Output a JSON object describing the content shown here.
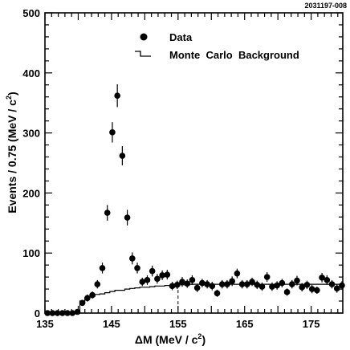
{
  "figure_id": "2031197-008",
  "chart_data": {
    "type": "scatter",
    "xlabel": "ΔM (MeV / c²)",
    "ylabel": "Events / 0.75 (MeV / c²)",
    "xlim": [
      135,
      179.75
    ],
    "ylim": [
      0,
      500
    ],
    "xticks": [
      135,
      145,
      155,
      165,
      175
    ],
    "yticks": [
      0,
      100,
      200,
      300,
      400,
      500
    ],
    "legend_position": "top-center",
    "series": [
      {
        "name": "Data",
        "kind": "points_with_errors",
        "x": [
          135.375,
          136.125,
          136.875,
          137.625,
          138.375,
          139.125,
          139.875,
          140.625,
          141.375,
          142.125,
          142.875,
          143.625,
          144.375,
          145.125,
          145.875,
          146.625,
          147.375,
          148.125,
          148.875,
          149.625,
          150.375,
          151.125,
          151.875,
          152.625,
          153.375,
          154.125,
          154.875,
          155.625,
          156.375,
          157.125,
          157.875,
          158.625,
          159.375,
          160.125,
          160.875,
          161.625,
          162.375,
          163.125,
          163.875,
          164.625,
          165.375,
          166.125,
          166.875,
          167.625,
          168.375,
          169.125,
          169.875,
          170.625,
          171.375,
          172.125,
          172.875,
          173.625,
          174.375,
          175.125,
          175.875,
          176.625,
          177.375,
          178.125,
          178.875,
          179.625
        ],
        "y": [
          0,
          0,
          0,
          0,
          0,
          0,
          2,
          17,
          25,
          30,
          48,
          75,
          167,
          301,
          362,
          262,
          159,
          91,
          75,
          52,
          55,
          70,
          57,
          63,
          64,
          45,
          47,
          52,
          49,
          55,
          42,
          50,
          48,
          45,
          33,
          48,
          48,
          53,
          66,
          48,
          48,
          52,
          47,
          44,
          60,
          44,
          46,
          50,
          35,
          48,
          54,
          43,
          47,
          40,
          38,
          59,
          55,
          48,
          41,
          46
        ],
        "err": [
          0,
          0,
          0,
          0,
          0,
          0,
          1.5,
          5,
          6,
          6,
          7,
          9,
          13,
          17,
          19,
          16,
          13,
          10,
          9,
          7,
          8,
          9,
          8,
          8,
          8,
          7,
          7,
          8,
          7,
          8,
          7,
          7,
          7,
          7,
          6,
          7,
          7,
          8,
          8,
          7,
          7,
          7,
          7,
          7,
          8,
          7,
          7,
          7,
          6,
          7,
          8,
          7,
          7,
          7,
          6,
          8,
          8,
          7,
          7,
          7
        ]
      },
      {
        "name": "Monte Carlo Background",
        "kind": "step_histogram",
        "bin_edges_start": 135,
        "bin_width": 0.75,
        "values": [
          0,
          0,
          0,
          0,
          0,
          0,
          2,
          20,
          25,
          28,
          31,
          32,
          34,
          36,
          38,
          38,
          40,
          41,
          42,
          43,
          43,
          44,
          45,
          45,
          46,
          46,
          47,
          47,
          47,
          48,
          48,
          48,
          48,
          48,
          48,
          48,
          48,
          48,
          48,
          48,
          48,
          48,
          48,
          48,
          48,
          48,
          48,
          48,
          48,
          48,
          48,
          48,
          48,
          48,
          48,
          48,
          48,
          48,
          48,
          48
        ]
      }
    ],
    "annotations": [
      {
        "kind": "dashed_vertical_line",
        "x": 155
      }
    ]
  },
  "legend": {
    "data_label": "Data",
    "mc_label": "Monte  Carlo  Background"
  },
  "axis": {
    "xlabel_main": "ΔM (MeV / c",
    "xlabel_sup": "2",
    "xlabel_end": ")",
    "ylabel_main": "Events / 0.75 (MeV / c",
    "ylabel_sup": "2",
    "ylabel_end": ")"
  }
}
